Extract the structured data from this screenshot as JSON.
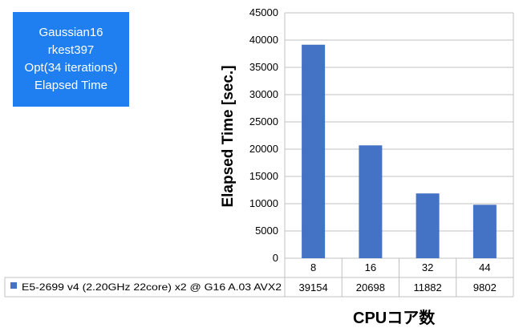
{
  "info_box": {
    "lines": [
      "Gaussian16",
      "rkest397",
      "Opt(34 iterations)",
      "Elapsed Time"
    ]
  },
  "chart_data": {
    "type": "bar",
    "categories": [
      "8",
      "16",
      "32",
      "44"
    ],
    "series": [
      {
        "name": "E5-2699 v4 (2.20GHz 22core) x2 @ G16 A.03 AVX2",
        "values": [
          39154,
          20698,
          11882,
          9802
        ],
        "color": "#4472c4"
      }
    ],
    "ylabel": "Elapsed Time [sec.]",
    "xlabel": "CPUコア数",
    "ylim": [
      0,
      45000
    ],
    "yticks": [
      "0",
      "5000",
      "10000",
      "15000",
      "20000",
      "25000",
      "30000",
      "35000",
      "40000",
      "45000"
    ],
    "grid": true,
    "legend": "data-table"
  }
}
